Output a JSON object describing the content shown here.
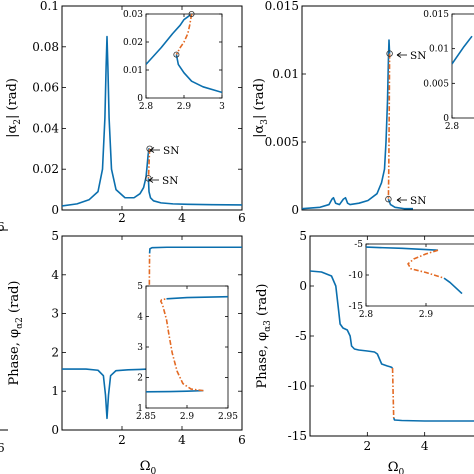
{
  "colors": {
    "stable": "#0b6fae",
    "unstable": "#e36a24",
    "axis": "#000000"
  },
  "annotations": {
    "sn": "SN"
  },
  "chart_data": [
    {
      "id": "alpha2_amplitude",
      "type": "line",
      "ylabel_main": "|α",
      "ylabel_sub": "2",
      "ylabel_unit": "| (rad)",
      "xlim": [
        0,
        6
      ],
      "ylim": [
        0,
        0.1
      ],
      "xticks": [
        "2",
        "4",
        "6"
      ],
      "yticks": [
        "0",
        "0.02",
        "0.04",
        "0.06",
        "0.08",
        "0.1"
      ],
      "annotations": [
        "SN",
        "SN"
      ],
      "series": [
        {
          "style": "stable",
          "x": [
            0,
            0.5,
            0.9,
            1.2,
            1.35,
            1.43,
            1.47,
            1.5,
            1.53,
            1.57,
            1.65,
            1.8,
            2.1,
            2.4,
            2.6,
            2.72,
            2.8,
            2.84,
            2.87,
            2.89,
            2.9,
            2.92
          ],
          "y": [
            0.002,
            0.003,
            0.005,
            0.009,
            0.02,
            0.045,
            0.07,
            0.085,
            0.07,
            0.045,
            0.02,
            0.01,
            0.006,
            0.006,
            0.008,
            0.011,
            0.016,
            0.022,
            0.027,
            0.029,
            0.03,
            0.03
          ]
        },
        {
          "style": "unstable",
          "x": [
            2.92,
            2.91,
            2.9,
            2.89,
            2.88
          ],
          "y": [
            0.03,
            0.026,
            0.022,
            0.018,
            0.0155
          ]
        },
        {
          "style": "stable",
          "x": [
            2.88,
            2.9,
            2.95,
            3.05,
            3.3,
            3.7,
            4.2,
            5,
            6
          ],
          "y": [
            0.0155,
            0.009,
            0.006,
            0.0045,
            0.0035,
            0.003,
            0.0028,
            0.0026,
            0.0025
          ]
        }
      ],
      "markers": [
        {
          "x": 2.92,
          "y": 0.03
        },
        {
          "x": 2.88,
          "y": 0.0155
        }
      ]
    },
    {
      "id": "alpha2_amplitude_inset",
      "type": "line",
      "xlim": [
        2.8,
        3
      ],
      "ylim": [
        0,
        0.03
      ],
      "xticks": [
        "2.8",
        "2.9",
        "3"
      ],
      "yticks": [
        "0",
        "0.01",
        "0.02",
        "0.03"
      ],
      "series": [
        {
          "style": "stable",
          "x": [
            2.8,
            2.84,
            2.87,
            2.89,
            2.9,
            2.91,
            2.92
          ],
          "y": [
            0.012,
            0.018,
            0.023,
            0.026,
            0.028,
            0.029,
            0.03
          ]
        },
        {
          "style": "unstable",
          "x": [
            2.92,
            2.915,
            2.91,
            2.9,
            2.89,
            2.88
          ],
          "y": [
            0.03,
            0.026,
            0.023,
            0.02,
            0.018,
            0.0155
          ]
        },
        {
          "style": "stable",
          "x": [
            2.88,
            2.885,
            2.9,
            2.92,
            2.95,
            3.0
          ],
          "y": [
            0.0155,
            0.012,
            0.009,
            0.006,
            0.004,
            0.002
          ]
        }
      ],
      "markers": [
        {
          "x": 2.92,
          "y": 0.03
        },
        {
          "x": 2.88,
          "y": 0.0155
        }
      ]
    },
    {
      "id": "alpha3_amplitude",
      "type": "line",
      "ylabel_main": "|α",
      "ylabel_sub": "3",
      "ylabel_unit": "| (rad)",
      "xlim": [
        0,
        6
      ],
      "ylim": [
        0,
        0.015
      ],
      "yticks": [
        "0",
        "0.005",
        "0.01",
        "0.015"
      ],
      "annotations": [
        "SN",
        "SN"
      ],
      "series": [
        {
          "style": "stable",
          "x": [
            0,
            0.6,
            0.9,
            1.0,
            1.05,
            1.12,
            1.25,
            1.38,
            1.45,
            1.52,
            1.6,
            1.9,
            2.2,
            2.5,
            2.65,
            2.75,
            2.8,
            2.85,
            2.88,
            2.9,
            2.92
          ],
          "y": [
            0.0001,
            0.0002,
            0.0004,
            0.0008,
            0.0009,
            0.0005,
            0.0004,
            0.0008,
            0.0009,
            0.0005,
            0.0004,
            0.0005,
            0.0007,
            0.0012,
            0.002,
            0.003,
            0.005,
            0.008,
            0.011,
            0.0125,
            0.0115
          ]
        },
        {
          "style": "unstable",
          "x": [
            2.92,
            2.91,
            2.9,
            2.89,
            2.88
          ],
          "y": [
            0.0115,
            0.008,
            0.005,
            0.0025,
            0.0008
          ]
        },
        {
          "style": "stable",
          "x": [
            2.88,
            2.95,
            3.1,
            3.4,
            3.7
          ],
          "y": [
            0.0008,
            0.0004,
            0.0002,
            0.0001,
            0.0001
          ]
        }
      ],
      "markers": [
        {
          "x": 2.92,
          "y": 0.0115
        },
        {
          "x": 2.88,
          "y": 0.0008
        }
      ]
    },
    {
      "id": "alpha3_amplitude_inset",
      "type": "line",
      "xlim": [
        2.8,
        3
      ],
      "ylim": [
        0,
        0.015
      ],
      "xticks": [
        "2.8"
      ],
      "yticks": [
        "0",
        "0.005",
        "0.01",
        "0.015"
      ],
      "series": [
        {
          "style": "stable",
          "x": [
            2.8,
            2.86,
            2.9
          ],
          "y": [
            0.0078,
            0.0103,
            0.0118
          ]
        }
      ]
    },
    {
      "id": "alpha2_phase",
      "type": "line",
      "ylabel_main": "Phase, φ",
      "ylabel_sub": "α2",
      "ylabel_unit": " (rad)",
      "xlabel_main": "Ω",
      "xlabel_sub": "0",
      "xlim": [
        0,
        6
      ],
      "ylim": [
        0,
        5
      ],
      "xticks": [
        "2",
        "4",
        "6"
      ],
      "yticks": [
        "0",
        "1",
        "2",
        "3",
        "4",
        "5"
      ],
      "series": [
        {
          "style": "stable",
          "x": [
            0,
            0.8,
            1.2,
            1.38,
            1.45,
            1.5,
            1.55,
            1.62,
            1.8,
            2.2,
            2.6,
            2.85,
            2.88
          ],
          "y": [
            1.57,
            1.57,
            1.54,
            1.4,
            0.9,
            0.3,
            0.9,
            1.4,
            1.53,
            1.55,
            1.56,
            1.57,
            1.58
          ]
        },
        {
          "style": "unstable",
          "x": [
            2.88,
            2.895,
            2.905,
            2.91,
            2.915,
            2.92
          ],
          "y": [
            1.58,
            2.0,
            2.8,
            3.5,
            4.2,
            4.55
          ]
        },
        {
          "style": "stable",
          "x": [
            2.92,
            2.93,
            3.0,
            3.5,
            4.5,
            6.0
          ],
          "y": [
            4.55,
            4.67,
            4.7,
            4.71,
            4.71,
            4.71
          ]
        }
      ]
    },
    {
      "id": "alpha2_phase_inset",
      "type": "line",
      "xlim": [
        2.85,
        2.95
      ],
      "ylim": [
        1,
        5
      ],
      "xticks": [
        "2.85",
        "2.9",
        "2.95"
      ],
      "yticks": [
        "1",
        "2",
        "3",
        "4",
        "5"
      ],
      "series": [
        {
          "style": "stable",
          "x": [
            2.85,
            2.88,
            2.9,
            2.92
          ],
          "y": [
            1.53,
            1.54,
            1.55,
            1.57
          ]
        },
        {
          "style": "unstable",
          "x": [
            2.92,
            2.905,
            2.895,
            2.888,
            2.882,
            2.878,
            2.875,
            2.872,
            2.87,
            2.868,
            2.869,
            2.875
          ],
          "y": [
            1.57,
            1.62,
            1.8,
            2.2,
            2.8,
            3.4,
            3.9,
            4.2,
            4.4,
            4.5,
            4.55,
            4.58
          ]
        },
        {
          "style": "stable",
          "x": [
            2.875,
            2.9,
            2.95
          ],
          "y": [
            4.58,
            4.62,
            4.65
          ]
        }
      ]
    },
    {
      "id": "alpha3_phase",
      "type": "line",
      "ylabel_main": "Phase, φ",
      "ylabel_sub": "α3",
      "ylabel_unit": " (rad)",
      "xlabel_main": "Ω",
      "xlabel_sub": "0",
      "xlim": [
        0,
        6
      ],
      "ylim": [
        -15,
        5
      ],
      "xticks": [
        "2",
        "4"
      ],
      "yticks": [
        "-15",
        "-10",
        "-5",
        "0",
        "5"
      ],
      "series": [
        {
          "style": "stable",
          "x": [
            0,
            0.4,
            0.75,
            0.9,
            1.0,
            1.05,
            1.15,
            1.3,
            1.4,
            1.45,
            1.55,
            1.7,
            2.0,
            2.25,
            2.35,
            2.5,
            2.7,
            2.82,
            2.88
          ],
          "y": [
            1.5,
            1.4,
            1.0,
            0.0,
            -2.5,
            -3.8,
            -4.2,
            -4.4,
            -5.0,
            -6.0,
            -6.3,
            -6.4,
            -6.5,
            -6.6,
            -6.8,
            -7.8,
            -8.0,
            -8.1,
            -8.2
          ]
        },
        {
          "style": "unstable",
          "x": [
            2.88,
            2.89,
            2.9,
            2.91,
            2.92
          ],
          "y": [
            -8.2,
            -9.5,
            -10.8,
            -12.0,
            -13.2
          ]
        },
        {
          "style": "stable",
          "x": [
            2.92,
            2.95,
            3.2,
            4.0,
            5.0,
            6.0
          ],
          "y": [
            -13.2,
            -13.4,
            -13.45,
            -13.5,
            -13.5,
            -13.5
          ]
        }
      ]
    },
    {
      "id": "alpha3_phase_inset",
      "type": "line",
      "xlim": [
        2.8,
        3
      ],
      "ylim": [
        -15,
        -5
      ],
      "xticks": [
        "2.8",
        "2.9"
      ],
      "yticks": [
        "-15",
        "-10",
        "-5"
      ],
      "series": [
        {
          "style": "stable",
          "x": [
            2.8,
            2.86,
            2.9,
            2.92
          ],
          "y": [
            -5.5,
            -5.7,
            -5.9,
            -6.0
          ]
        },
        {
          "style": "unstable",
          "x": [
            2.92,
            2.9,
            2.88,
            2.87,
            2.875,
            2.9,
            2.93
          ],
          "y": [
            -6.0,
            -6.6,
            -7.4,
            -8.2,
            -9.0,
            -9.6,
            -10.5
          ]
        },
        {
          "style": "stable",
          "x": [
            2.93,
            2.94,
            2.96
          ],
          "y": [
            -10.5,
            -11.2,
            -13.0
          ]
        }
      ]
    }
  ]
}
